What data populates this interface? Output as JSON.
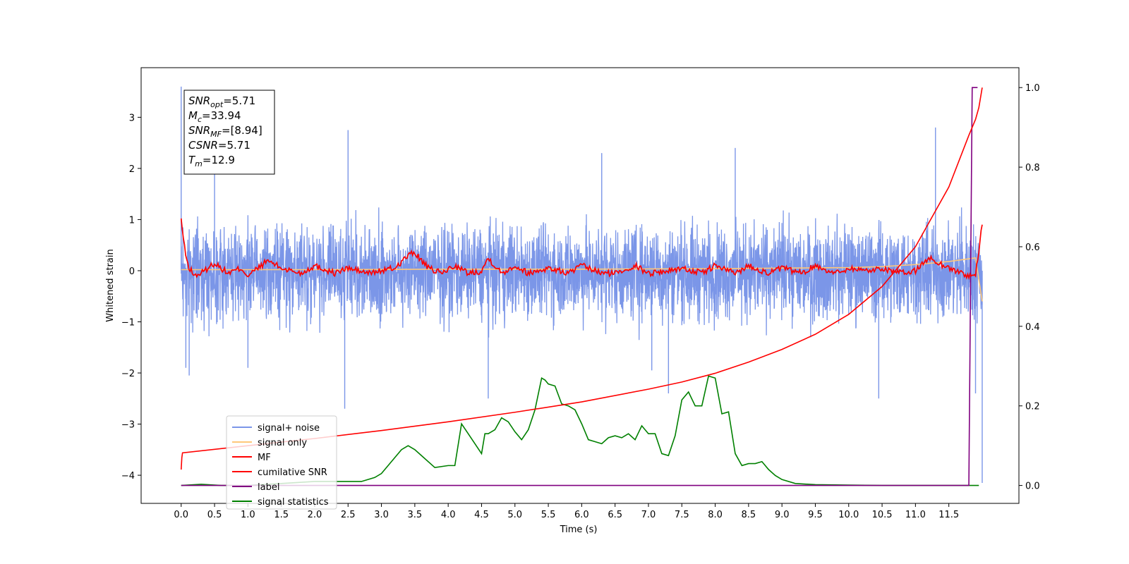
{
  "chart_data": {
    "type": "line",
    "xlabel": "Time (s)",
    "ylabel": "Whitened strain",
    "xlim": [
      -0.6,
      12.55
    ],
    "ylim": [
      -4.55,
      3.97
    ],
    "y2lim": [
      -0.045,
      1.05
    ],
    "x_ticks": [
      0.0,
      0.5,
      1.0,
      1.5,
      2.0,
      2.5,
      3.0,
      3.5,
      4.0,
      4.5,
      5.0,
      5.5,
      6.0,
      6.5,
      7.0,
      7.5,
      8.0,
      8.5,
      9.0,
      9.5,
      10.0,
      10.5,
      11.0,
      11.5
    ],
    "x_tick_labels": [
      "0.0",
      "0.5",
      "1.0",
      "1.5",
      "2.0",
      "2.5",
      "3.0",
      "3.5",
      "4.0",
      "4.5",
      "5.0",
      "5.5",
      "6.0",
      "6.5",
      "7.0",
      "7.5",
      "8.0",
      "8.5",
      "9.0",
      "9.5",
      "10.0",
      "10.5",
      "11.0",
      "11.5"
    ],
    "y_ticks": [
      -4,
      -3,
      -2,
      -1,
      0,
      1,
      2,
      3
    ],
    "y_tick_labels": [
      "−4",
      "−3",
      "−2",
      "−1",
      "0",
      "1",
      "2",
      "3"
    ],
    "y2_ticks": [
      0.0,
      0.2,
      0.4,
      0.6,
      0.8,
      1.0
    ],
    "y2_tick_labels": [
      "0.0",
      "0.2",
      "0.4",
      "0.6",
      "0.8",
      "1.0"
    ],
    "legend_location": "lower-left",
    "legend": [
      {
        "label": "signal+ noise",
        "color": "#7b96e8"
      },
      {
        "label": "signal only",
        "color": "#ffc87a"
      },
      {
        "label": "MF",
        "color": "#ff0000"
      },
      {
        "label": "cumilative SNR",
        "color": "#ff0000"
      },
      {
        "label": "label",
        "color": "#800080"
      },
      {
        "label": "signal statistics",
        "color": "#008000"
      }
    ],
    "info_box": [
      {
        "sym": "SNR",
        "sub": "opt",
        "val": "=5.71"
      },
      {
        "sym": "M",
        "sub": "c",
        "val": "=33.94"
      },
      {
        "sym": "SNR",
        "sub": "MF",
        "val": "=[8.94]"
      },
      {
        "sym": "CSNR",
        "sub": "",
        "val": "=5.71"
      },
      {
        "sym": "T",
        "sub": "m",
        "val": "=12.9"
      }
    ],
    "series": [
      {
        "name": "signal+ noise",
        "axis": "left",
        "color": "#7b96e8",
        "amplitude_band": [
          -1.1,
          1.0
        ],
        "spikes": [
          [
            0.0,
            3.6
          ],
          [
            0.07,
            -1.9
          ],
          [
            0.12,
            -2.05
          ],
          [
            0.5,
            2.0
          ],
          [
            1.0,
            -1.9
          ],
          [
            2.5,
            2.75
          ],
          [
            2.45,
            -2.7
          ],
          [
            4.6,
            -2.5
          ],
          [
            6.3,
            2.3
          ],
          [
            7.05,
            -1.95
          ],
          [
            7.3,
            -2.4
          ],
          [
            8.3,
            2.4
          ],
          [
            10.45,
            -2.5
          ],
          [
            11.3,
            2.8
          ],
          [
            11.9,
            -2.4
          ],
          [
            12.0,
            -4.15
          ]
        ]
      },
      {
        "name": "signal only",
        "axis": "left",
        "color": "#ffc87a",
        "x": [
          0.0,
          2.0,
          4.0,
          6.0,
          8.0,
          9.0,
          10.0,
          10.5,
          11.0,
          11.5,
          11.9,
          12.0
        ],
        "y": [
          0.02,
          0.02,
          0.03,
          0.03,
          0.04,
          0.05,
          0.06,
          0.08,
          0.12,
          0.18,
          0.25,
          -0.6
        ]
      },
      {
        "name": "MF",
        "axis": "left",
        "color": "#ff0000",
        "x": [
          0.0,
          0.05,
          0.1,
          0.2,
          0.3,
          0.5,
          0.7,
          0.9,
          1.0,
          1.3,
          1.5,
          1.8,
          2.0,
          2.3,
          2.5,
          2.8,
          3.0,
          3.2,
          3.4,
          3.5,
          3.7,
          3.9,
          4.1,
          4.3,
          4.5,
          4.6,
          4.8,
          5.0,
          5.2,
          5.5,
          5.8,
          6.0,
          6.3,
          6.5,
          6.8,
          7.0,
          7.3,
          7.5,
          7.8,
          8.0,
          8.3,
          8.5,
          8.8,
          9.0,
          9.3,
          9.5,
          9.8,
          10.0,
          10.3,
          10.5,
          10.8,
          11.0,
          11.2,
          11.5,
          11.8,
          11.9,
          11.95,
          12.0
        ],
        "y": [
          1.0,
          0.45,
          0.1,
          -0.1,
          -0.05,
          0.15,
          -0.05,
          0.05,
          -0.1,
          0.2,
          0.05,
          -0.05,
          0.1,
          -0.05,
          0.05,
          -0.05,
          0.0,
          0.05,
          0.3,
          0.35,
          0.05,
          -0.05,
          0.1,
          -0.05,
          0.0,
          0.25,
          -0.05,
          0.1,
          -0.05,
          0.05,
          -0.05,
          0.1,
          -0.05,
          -0.05,
          0.1,
          -0.05,
          0.0,
          0.05,
          -0.05,
          0.1,
          -0.05,
          0.1,
          -0.05,
          0.05,
          -0.05,
          0.1,
          -0.05,
          0.05,
          0.0,
          0.05,
          -0.05,
          0.0,
          0.25,
          0.05,
          -0.1,
          -0.1,
          0.4,
          0.9
        ]
      },
      {
        "name": "cumilative SNR",
        "axis": "right",
        "color": "#ff0000",
        "x": [
          0.0,
          0.01,
          0.02,
          1.0,
          2.0,
          3.0,
          4.0,
          5.0,
          6.0,
          7.0,
          7.5,
          8.0,
          8.5,
          9.0,
          9.5,
          10.0,
          10.5,
          11.0,
          11.5,
          11.8,
          11.9,
          11.95,
          12.0
        ],
        "y": [
          0.04,
          0.07,
          0.082,
          0.1,
          0.118,
          0.138,
          0.16,
          0.184,
          0.21,
          0.242,
          0.26,
          0.282,
          0.31,
          0.342,
          0.38,
          0.43,
          0.5,
          0.6,
          0.75,
          0.88,
          0.92,
          0.95,
          1.0
        ]
      },
      {
        "name": "label",
        "axis": "right",
        "color": "#800080",
        "x": [
          0.0,
          11.8,
          11.85,
          11.93
        ],
        "y": [
          0.0,
          0.0,
          1.0,
          1.0
        ]
      },
      {
        "name": "signal statistics",
        "axis": "right",
        "color": "#008000",
        "x": [
          0.0,
          0.3,
          0.6,
          1.0,
          1.5,
          2.0,
          2.5,
          2.7,
          2.9,
          3.0,
          3.1,
          3.2,
          3.3,
          3.4,
          3.5,
          3.6,
          3.8,
          4.0,
          4.1,
          4.2,
          4.3,
          4.4,
          4.5,
          4.55,
          4.6,
          4.7,
          4.8,
          4.9,
          5.0,
          5.1,
          5.2,
          5.3,
          5.4,
          5.45,
          5.5,
          5.6,
          5.7,
          5.8,
          5.9,
          6.0,
          6.1,
          6.2,
          6.3,
          6.4,
          6.5,
          6.6,
          6.7,
          6.8,
          6.9,
          7.0,
          7.1,
          7.2,
          7.3,
          7.4,
          7.5,
          7.6,
          7.7,
          7.8,
          7.9,
          8.0,
          8.1,
          8.2,
          8.3,
          8.4,
          8.5,
          8.6,
          8.7,
          8.8,
          8.9,
          9.0,
          9.2,
          9.5,
          10.0,
          10.5,
          11.0,
          11.5,
          11.95
        ],
        "y": [
          0.0,
          0.003,
          0.0,
          0.0,
          0.005,
          0.01,
          0.01,
          0.01,
          0.02,
          0.03,
          0.05,
          0.07,
          0.09,
          0.1,
          0.09,
          0.075,
          0.045,
          0.05,
          0.05,
          0.155,
          0.13,
          0.105,
          0.08,
          0.13,
          0.13,
          0.14,
          0.17,
          0.16,
          0.135,
          0.115,
          0.14,
          0.19,
          0.27,
          0.265,
          0.255,
          0.25,
          0.205,
          0.2,
          0.19,
          0.155,
          0.115,
          0.11,
          0.105,
          0.12,
          0.125,
          0.12,
          0.13,
          0.115,
          0.15,
          0.13,
          0.13,
          0.08,
          0.075,
          0.125,
          0.215,
          0.235,
          0.2,
          0.2,
          0.275,
          0.27,
          0.18,
          0.185,
          0.08,
          0.05,
          0.055,
          0.055,
          0.06,
          0.04,
          0.025,
          0.015,
          0.005,
          0.002,
          0.001,
          0.0,
          0.0,
          0.0,
          0.0
        ]
      }
    ]
  }
}
